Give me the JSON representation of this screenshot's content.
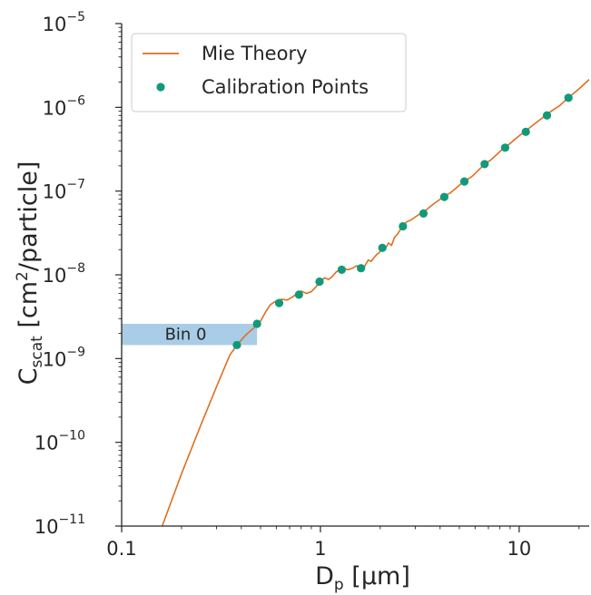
{
  "chart_data": {
    "type": "line",
    "x_scale": "log",
    "y_scale": "log",
    "xlim": [
      0.1,
      22.5
    ],
    "ylim": [
      1e-11,
      1e-05
    ],
    "x_ticks": [
      {
        "value": 0.1,
        "label": "0.1"
      },
      {
        "value": 1,
        "label": "1"
      },
      {
        "value": 10,
        "label": "10"
      }
    ],
    "y_ticks": [
      {
        "value": 1e-11,
        "base": "10",
        "exp": "−11"
      },
      {
        "value": 1e-10,
        "base": "10",
        "exp": "−10"
      },
      {
        "value": 1e-09,
        "base": "10",
        "exp": "−9"
      },
      {
        "value": 1e-08,
        "base": "10",
        "exp": "−8"
      },
      {
        "value": 1e-07,
        "base": "10",
        "exp": "−7"
      },
      {
        "value": 1e-06,
        "base": "10",
        "exp": "−6"
      },
      {
        "value": 1e-05,
        "base": "10",
        "exp": "−5"
      }
    ],
    "xlabel": {
      "main": "D",
      "sub": "p",
      "rest": " [μm]"
    },
    "ylabel": {
      "main": "C",
      "sub": "scat",
      "pre": " [cm",
      "sup": "2",
      "post": "/particle]"
    },
    "legend": {
      "position": "top-left",
      "entries": [
        {
          "label": "Mie Theory",
          "kind": "line",
          "color": "#dd7020"
        },
        {
          "label": "Calibration Points",
          "kind": "marker",
          "color": "#119a7a"
        }
      ]
    },
    "series": [
      {
        "name": "Mie Theory",
        "color": "#dd7020",
        "points": [
          [
            0.16,
            1e-11
          ],
          [
            0.2,
            4.2e-11
          ],
          [
            0.25,
            1.6e-10
          ],
          [
            0.3,
            4.6e-10
          ],
          [
            0.35,
            1.1e-09
          ],
          [
            0.38,
            1.45e-09
          ],
          [
            0.42,
            1.9e-09
          ],
          [
            0.46,
            2.3e-09
          ],
          [
            0.5,
            2.8e-09
          ],
          [
            0.53,
            3.6e-09
          ],
          [
            0.56,
            4.4e-09
          ],
          [
            0.6,
            4.9e-09
          ],
          [
            0.64,
            5.1e-09
          ],
          [
            0.68,
            5e-09
          ],
          [
            0.72,
            5.4e-09
          ],
          [
            0.76,
            5.9e-09
          ],
          [
            0.8,
            6.4e-09
          ],
          [
            0.85,
            6e-09
          ],
          [
            0.9,
            6.3e-09
          ],
          [
            0.95,
            7.2e-09
          ],
          [
            1.0,
            8.4e-09
          ],
          [
            1.05,
            9.2e-09
          ],
          [
            1.1,
            8.8e-09
          ],
          [
            1.15,
            9.6e-09
          ],
          [
            1.2,
            1.08e-08
          ],
          [
            1.25,
            1.15e-08
          ],
          [
            1.3,
            1.2e-08
          ],
          [
            1.38,
            1.15e-08
          ],
          [
            1.45,
            1.2e-08
          ],
          [
            1.52,
            1.28e-08
          ],
          [
            1.58,
            1.25e-08
          ],
          [
            1.63,
            1.12e-08
          ],
          [
            1.68,
            1.3e-08
          ],
          [
            1.74,
            1.5e-08
          ],
          [
            1.8,
            1.45e-08
          ],
          [
            1.86,
            1.6e-08
          ],
          [
            1.92,
            1.75e-08
          ],
          [
            1.98,
            1.85e-08
          ],
          [
            2.05,
            2.1e-08
          ],
          [
            2.12,
            2.05e-08
          ],
          [
            2.2,
            2.4e-08
          ],
          [
            2.28,
            2.25e-08
          ],
          [
            2.36,
            2.8e-08
          ],
          [
            2.45,
            3.1e-08
          ],
          [
            2.55,
            3.6e-08
          ],
          [
            2.62,
            3.9e-08
          ],
          [
            2.72,
            4.3e-08
          ],
          [
            2.85,
            4.5e-08
          ],
          [
            3.0,
            4.9e-08
          ],
          [
            3.15,
            5.3e-08
          ],
          [
            3.3,
            5.5e-08
          ],
          [
            3.5,
            6.3e-08
          ],
          [
            3.7,
            7e-08
          ],
          [
            3.95,
            7.8e-08
          ],
          [
            4.2,
            8.7e-08
          ],
          [
            4.5,
            9.5e-08
          ],
          [
            4.8,
            1.08e-07
          ],
          [
            5.1,
            1.22e-07
          ],
          [
            5.4,
            1.34e-07
          ],
          [
            5.8,
            1.5e-07
          ],
          [
            6.2,
            1.75e-07
          ],
          [
            6.7,
            2.1e-07
          ],
          [
            7.2,
            2.35e-07
          ],
          [
            7.8,
            2.8e-07
          ],
          [
            8.4,
            3.3e-07
          ],
          [
            9.0,
            3.7e-07
          ],
          [
            9.8,
            4.4e-07
          ],
          [
            10.6,
            5.1e-07
          ],
          [
            11.5,
            5.9e-07
          ],
          [
            12.5,
            6.9e-07
          ],
          [
            13.5,
            7.9e-07
          ],
          [
            14.5,
            9e-07
          ],
          [
            16.0,
            1.05e-06
          ],
          [
            17.5,
            1.28e-06
          ],
          [
            19.0,
            1.5e-06
          ],
          [
            20.5,
            1.75e-06
          ],
          [
            22.5,
            2.15e-06
          ]
        ]
      },
      {
        "name": "Calibration Points",
        "color": "#119a7a",
        "points": [
          [
            0.38,
            1.45e-09
          ],
          [
            0.48,
            2.6e-09
          ],
          [
            0.62,
            4.6e-09
          ],
          [
            0.78,
            5.8e-09
          ],
          [
            0.99,
            8.3e-09
          ],
          [
            1.28,
            1.15e-08
          ],
          [
            1.6,
            1.2e-08
          ],
          [
            2.05,
            2.1e-08
          ],
          [
            2.6,
            3.8e-08
          ],
          [
            3.3,
            5.4e-08
          ],
          [
            4.2,
            8.5e-08
          ],
          [
            5.3,
            1.3e-07
          ],
          [
            6.7,
            2.1e-07
          ],
          [
            8.5,
            3.3e-07
          ],
          [
            10.8,
            5.1e-07
          ],
          [
            13.8,
            8e-07
          ],
          [
            17.7,
            1.3e-06
          ]
        ]
      }
    ],
    "annotations": [
      {
        "label": "Bin 0",
        "x_range": [
          0.1,
          0.48
        ],
        "y_range": [
          1.45e-09,
          2.6e-09
        ],
        "color": "#a9cde6"
      }
    ]
  }
}
